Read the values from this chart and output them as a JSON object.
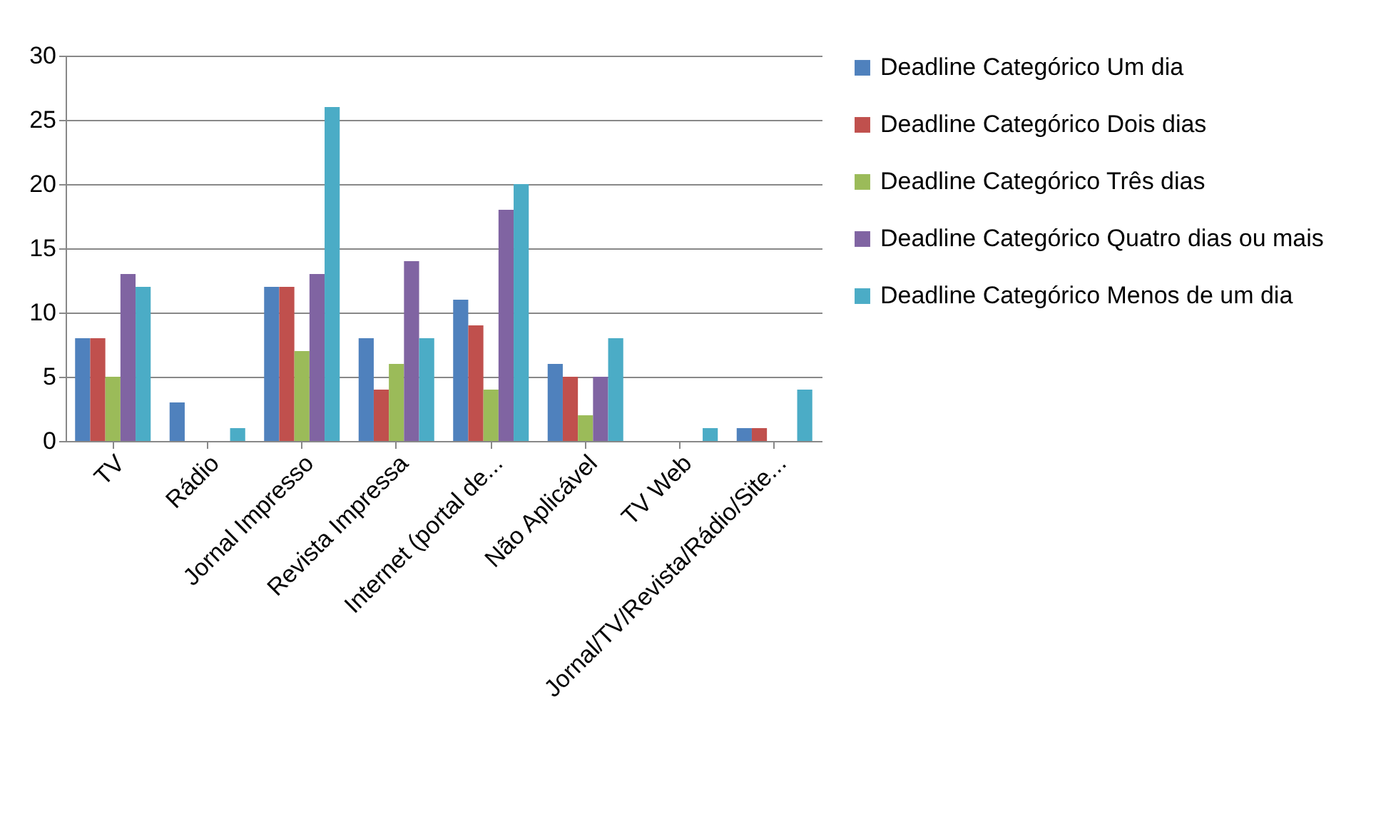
{
  "chart_data": {
    "type": "bar",
    "categories": [
      "TV",
      "Rádio",
      "Jornal Impresso",
      "Revista Impressa",
      "Internet (portal de...",
      "Não Aplicável",
      "TV Web",
      "Jornal/TV/Revista/Rádio/Site..."
    ],
    "series": [
      {
        "name": "Deadline Categórico Um dia",
        "color": "#4f81bd",
        "values": [
          8,
          3,
          12,
          8,
          11,
          6,
          0,
          1
        ]
      },
      {
        "name": "Deadline Categórico Dois dias",
        "color": "#c0504d",
        "values": [
          8,
          0,
          12,
          4,
          9,
          5,
          0,
          1
        ]
      },
      {
        "name": "Deadline Categórico Três dias",
        "color": "#9bbb59",
        "values": [
          5,
          0,
          7,
          6,
          4,
          2,
          0,
          0
        ]
      },
      {
        "name": "Deadline Categórico Quatro dias ou mais",
        "color": "#8064a2",
        "values": [
          13,
          0,
          13,
          14,
          18,
          5,
          0,
          0
        ]
      },
      {
        "name": "Deadline Categórico Menos de um dia",
        "color": "#4bacc6",
        "values": [
          12,
          1,
          26,
          8,
          20,
          8,
          1,
          4
        ]
      }
    ],
    "ylim": [
      0,
      30
    ],
    "yticks": [
      0,
      5,
      10,
      15,
      20,
      25,
      30
    ],
    "grid": "y",
    "legend": "right"
  }
}
